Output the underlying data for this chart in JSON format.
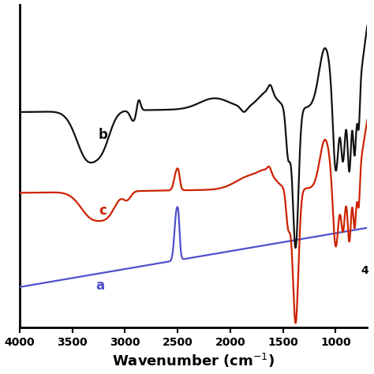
{
  "xlabel": "Wavenumber (cm$^{-1}$)",
  "xlim": [
    4000,
    700
  ],
  "xticks": [
    4000,
    3500,
    3000,
    2500,
    2000,
    1500,
    1000
  ],
  "xtick_labels": [
    "4000",
    "3500",
    "3000",
    "2500",
    "2000",
    "1500",
    "1000"
  ],
  "label_a": "a",
  "label_b": "b",
  "label_c": "c",
  "color_a": "#5050cc",
  "color_b": "#111111",
  "color_c": "#cc2200",
  "background_color": "#ffffff",
  "note_4": "4",
  "linewidth": 1.6
}
